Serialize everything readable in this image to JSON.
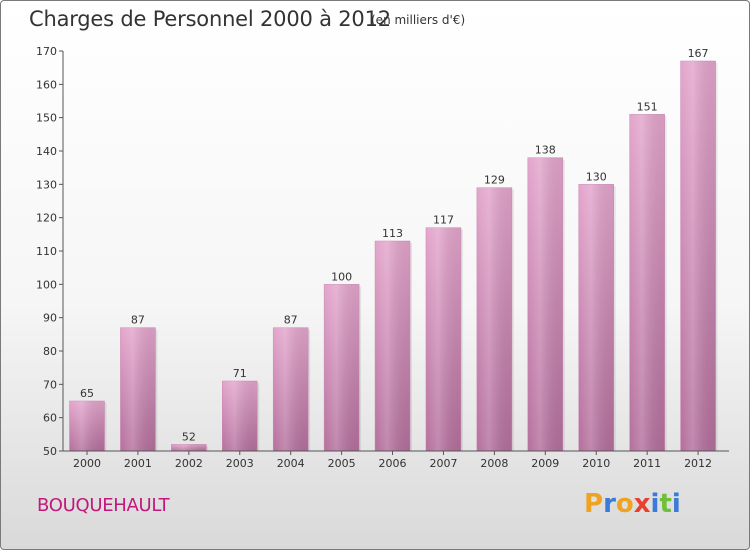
{
  "header": {
    "title": "Charges de Personnel 2000 à 2012",
    "unit": "(en milliers d'€)"
  },
  "footer": {
    "place": "BOUQUEHAULT",
    "logo": "Proxiti"
  },
  "colors": {
    "bar_top": "#e3a5cc",
    "bar_bottom": "#b46f9c",
    "place_text": "#c2187c",
    "logo_letters": [
      "#f0a320",
      "#3a7ad8",
      "#f0a320",
      "#e7412d",
      "#3a7ad8",
      "#6fbf3b",
      "#3a7ad8"
    ]
  },
  "chart_data": {
    "type": "bar",
    "title": "Charges de Personnel 2000 à 2012",
    "subtitle": "(en milliers d'€)",
    "xlabel": "",
    "ylabel": "",
    "categories": [
      "2000",
      "2001",
      "2002",
      "2003",
      "2004",
      "2005",
      "2006",
      "2007",
      "2008",
      "2009",
      "2010",
      "2011",
      "2012"
    ],
    "values": [
      65,
      87,
      52,
      71,
      87,
      100,
      113,
      117,
      129,
      138,
      130,
      151,
      167
    ],
    "ylim": [
      50,
      170
    ],
    "yticks": [
      50,
      60,
      70,
      80,
      90,
      100,
      110,
      120,
      130,
      140,
      150,
      160,
      170
    ],
    "grid": false,
    "legend": "none"
  }
}
